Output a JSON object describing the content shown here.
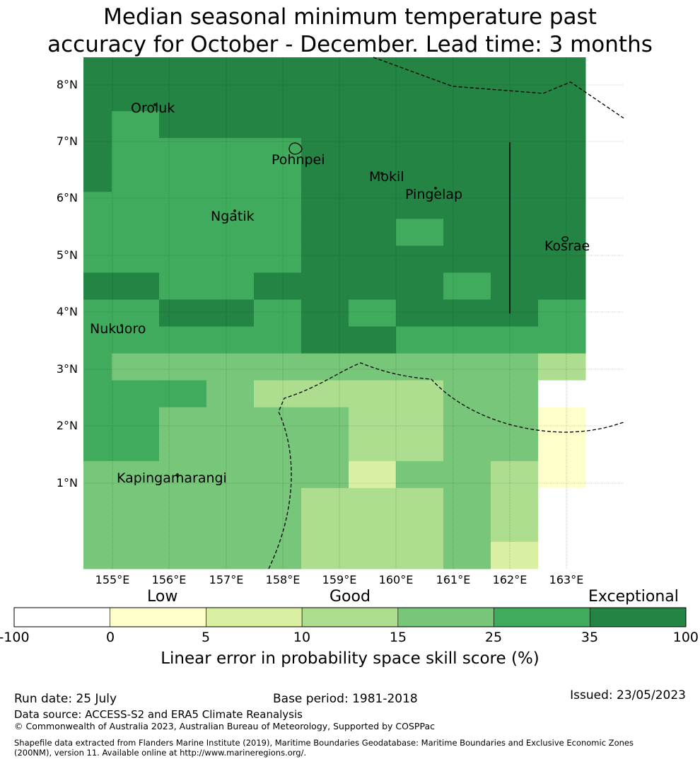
{
  "title": {
    "line1": "Median seasonal minimum temperature past",
    "line2": "accuracy for October - December. Lead time: 3 months"
  },
  "map": {
    "lat_labels": [
      "8°N",
      "7°N",
      "6°N",
      "5°N",
      "4°N",
      "3°N",
      "2°N",
      "1°N"
    ],
    "lon_labels": [
      "155°E",
      "156°E",
      "157°E",
      "158°E",
      "159°E",
      "160°E",
      "161°E",
      "162°E",
      "163°E"
    ],
    "places": [
      "Oroluk",
      "Pohnpei",
      "Mokil",
      "Pingelap",
      "Ngatik",
      "Kosrae",
      "Nukuoro",
      "Kapingamarangi"
    ],
    "grid_categories": [
      [
        6,
        6,
        6,
        6,
        6,
        6,
        6,
        6,
        6,
        6,
        6
      ],
      [
        6,
        6,
        6,
        6,
        6,
        6,
        6,
        6,
        6,
        6,
        6
      ],
      [
        6,
        5,
        6,
        6,
        6,
        6,
        6,
        6,
        6,
        6,
        6
      ],
      [
        6,
        5,
        5,
        5,
        5,
        6,
        6,
        6,
        6,
        6,
        6
      ],
      [
        6,
        5,
        5,
        5,
        5,
        6,
        6,
        6,
        6,
        6,
        6
      ],
      [
        5,
        5,
        5,
        5,
        5,
        6,
        6,
        6,
        6,
        6,
        6
      ],
      [
        5,
        5,
        5,
        5,
        5,
        6,
        6,
        5,
        6,
        6,
        6
      ],
      [
        5,
        5,
        5,
        5,
        5,
        6,
        6,
        6,
        6,
        6,
        6
      ],
      [
        6,
        6,
        5,
        5,
        6,
        6,
        6,
        6,
        5,
        6,
        6
      ],
      [
        5,
        5,
        6,
        6,
        5,
        6,
        5,
        6,
        6,
        6,
        5
      ],
      [
        5,
        5,
        5,
        5,
        5,
        6,
        6,
        5,
        5,
        5,
        5
      ],
      [
        5,
        4,
        4,
        4,
        4,
        4,
        4,
        4,
        4,
        4,
        3
      ],
      [
        5,
        5,
        5,
        4,
        3,
        3,
        3,
        3,
        4,
        4,
        0
      ],
      [
        5,
        5,
        4,
        4,
        4,
        4,
        3,
        3,
        4,
        4,
        1
      ],
      [
        5,
        5,
        4,
        4,
        4,
        4,
        3,
        3,
        4,
        4,
        1
      ],
      [
        4,
        4,
        4,
        4,
        4,
        4,
        2,
        4,
        4,
        3,
        1
      ],
      [
        4,
        4,
        4,
        4,
        4,
        3,
        3,
        3,
        4,
        3,
        0
      ],
      [
        4,
        4,
        4,
        4,
        4,
        3,
        3,
        3,
        4,
        3,
        0
      ],
      [
        4,
        4,
        4,
        4,
        4,
        3,
        3,
        3,
        4,
        2,
        0
      ]
    ],
    "skill_colors": [
      "#ffffff",
      "#ffffcc",
      "#d9f0a3",
      "#addd8e",
      "#78c679",
      "#41ab5d",
      "#238443"
    ]
  },
  "colorbar": {
    "categories": [
      "Low",
      "Good",
      "Exceptional"
    ],
    "ticks": [
      "-100",
      "0",
      "5",
      "10",
      "15",
      "25",
      "35",
      "100"
    ],
    "title": "Linear error in probability space skill score (%)"
  },
  "footer": {
    "run_date": "Run date: 25 July",
    "base_period": "Base period: 1981-2018",
    "issued": "Issued: 23/05/2023",
    "data_source": "Data source: ACCESS-S2 and ERA5 Climate Reanalysis",
    "copyright": "© Commonwealth of Australia 2023, Australian Bureau of Meteorology, Supported by COSPPac",
    "shapefile_line1": "Shapefile data extracted from Flanders Marine Institute (2019), Maritime Boundaries Geodatabase: Maritime Boundaries and Exclusive Economic Zones",
    "shapefile_line2": "(200NM), version 11. Available online at http://www.marineregions.org/."
  }
}
